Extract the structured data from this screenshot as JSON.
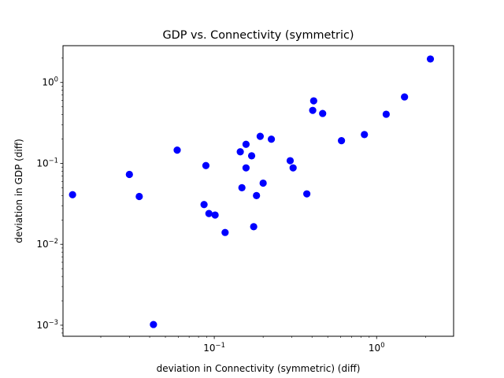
{
  "chart_data": {
    "type": "scatter",
    "title": "GDP vs. Connectivity (symmetric)",
    "xlabel": "deviation in Connectivity (symmetric) (diff)",
    "ylabel": "deviation in GDP (diff)",
    "xscale": "log",
    "yscale": "log",
    "xlim": [
      0.0117,
      2.98
    ],
    "ylim": [
      0.00073,
      2.85
    ],
    "grid": false,
    "legend": "none",
    "marker_color": "#0000ff",
    "x_ticks": [
      {
        "value": 0.1,
        "base": "10",
        "exp": "−1"
      },
      {
        "value": 1,
        "base": "10",
        "exp": "0"
      }
    ],
    "y_ticks": [
      {
        "value": 0.001,
        "base": "10",
        "exp": "−3"
      },
      {
        "value": 0.01,
        "base": "10",
        "exp": "−2"
      },
      {
        "value": 0.1,
        "base": "10",
        "exp": "−1"
      },
      {
        "value": 1,
        "base": "10",
        "exp": "0"
      }
    ],
    "points": [
      {
        "x": 0.0134,
        "y": 0.041
      },
      {
        "x": 0.03,
        "y": 0.073
      },
      {
        "x": 0.0345,
        "y": 0.039
      },
      {
        "x": 0.0422,
        "y": 0.00102
      },
      {
        "x": 0.0591,
        "y": 0.146
      },
      {
        "x": 0.0865,
        "y": 0.031
      },
      {
        "x": 0.0888,
        "y": 0.094
      },
      {
        "x": 0.0927,
        "y": 0.024
      },
      {
        "x": 0.1012,
        "y": 0.023
      },
      {
        "x": 0.1166,
        "y": 0.014
      },
      {
        "x": 0.1446,
        "y": 0.139
      },
      {
        "x": 0.148,
        "y": 0.05
      },
      {
        "x": 0.1569,
        "y": 0.172
      },
      {
        "x": 0.1569,
        "y": 0.088
      },
      {
        "x": 0.1699,
        "y": 0.124
      },
      {
        "x": 0.1749,
        "y": 0.0165
      },
      {
        "x": 0.182,
        "y": 0.04
      },
      {
        "x": 0.1918,
        "y": 0.216
      },
      {
        "x": 0.2,
        "y": 0.057
      },
      {
        "x": 0.2247,
        "y": 0.199
      },
      {
        "x": 0.2935,
        "y": 0.108
      },
      {
        "x": 0.3059,
        "y": 0.088
      },
      {
        "x": 0.3716,
        "y": 0.042
      },
      {
        "x": 0.404,
        "y": 0.452
      },
      {
        "x": 0.4096,
        "y": 0.593
      },
      {
        "x": 0.4652,
        "y": 0.414
      },
      {
        "x": 0.6074,
        "y": 0.191
      },
      {
        "x": 0.8409,
        "y": 0.227
      },
      {
        "x": 1.1456,
        "y": 0.405
      },
      {
        "x": 1.4855,
        "y": 0.663
      },
      {
        "x": 2.144,
        "y": 1.95
      }
    ]
  }
}
